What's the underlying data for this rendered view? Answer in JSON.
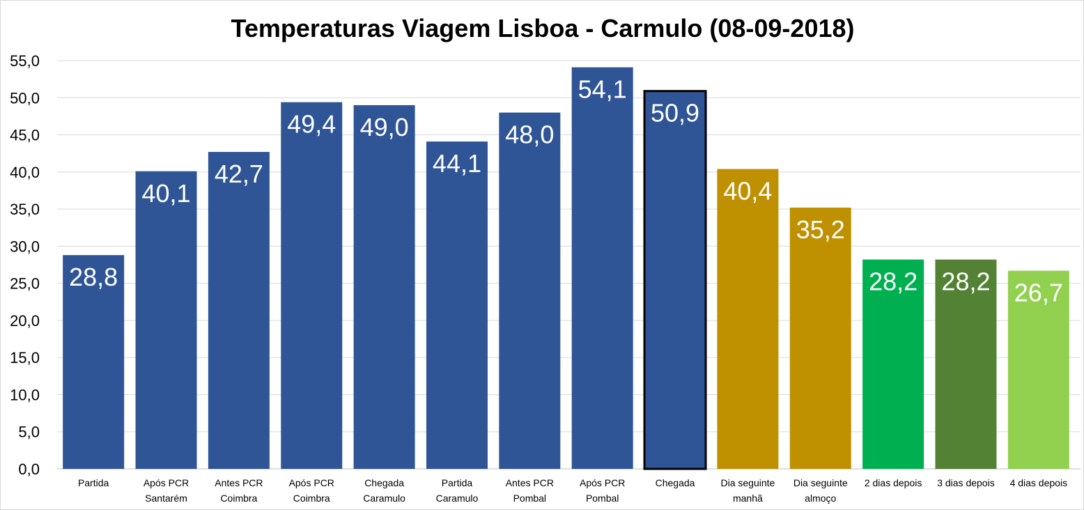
{
  "chart_data": {
    "type": "bar",
    "title": "Temperaturas Viagem Lisboa - Carmulo (08-09-2018)",
    "xlabel": "",
    "ylabel": "",
    "ylim": [
      0,
      55
    ],
    "ytick_step": 5,
    "yticks": [
      "0,0",
      "5,0",
      "10,0",
      "15,0",
      "20,0",
      "25,0",
      "30,0",
      "35,0",
      "40,0",
      "45,0",
      "50,0",
      "55,0"
    ],
    "grid": true,
    "categories": [
      [
        "Partida"
      ],
      [
        "Após PCR",
        "Santarém"
      ],
      [
        "Antes PCR",
        "Coimbra"
      ],
      [
        "Após PCR",
        "Coimbra"
      ],
      [
        "Chegada",
        "Caramulo"
      ],
      [
        "Partida",
        "Caramulo"
      ],
      [
        "Antes PCR",
        "Pombal"
      ],
      [
        "Após PCR",
        "Pombal"
      ],
      [
        "Chegada"
      ],
      [
        "Dia seguinte",
        "manhã"
      ],
      [
        "Dia seguinte",
        "almoço"
      ],
      [
        "2 dias depois"
      ],
      [
        "3 dias depois"
      ],
      [
        "4 dias depois"
      ]
    ],
    "values": [
      28.8,
      40.1,
      42.7,
      49.4,
      49.0,
      44.1,
      48.0,
      54.1,
      50.9,
      40.4,
      35.2,
      28.2,
      28.2,
      26.7
    ],
    "labels": [
      "28,8",
      "40,1",
      "42,7",
      "49,4",
      "49,0",
      "44,1",
      "48,0",
      "54,1",
      "50,9",
      "40,4",
      "35,2",
      "28,2",
      "28,2",
      "26,7"
    ],
    "colors": [
      "#2F5597",
      "#2F5597",
      "#2F5597",
      "#2F5597",
      "#2F5597",
      "#2F5597",
      "#2F5597",
      "#2F5597",
      "#2F5597",
      "#BF9000",
      "#BF9000",
      "#00B050",
      "#548235",
      "#92D050"
    ],
    "highlighted_index": 8
  }
}
